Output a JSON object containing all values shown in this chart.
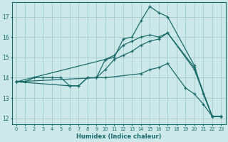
{
  "xlabel": "Humidex (Indice chaleur)",
  "ylabel": "",
  "bg_color": "#cce8e8",
  "grid_color": "#aacfcf",
  "line_color": "#1a6b6b",
  "xlim": [
    -0.5,
    23.5
  ],
  "ylim": [
    11.7,
    17.7
  ],
  "xticks": [
    0,
    1,
    2,
    3,
    4,
    5,
    6,
    7,
    8,
    9,
    10,
    11,
    12,
    13,
    14,
    15,
    16,
    17,
    18,
    19,
    20,
    21,
    22,
    23
  ],
  "yticks": [
    12,
    13,
    14,
    15,
    16,
    17
  ],
  "series": [
    {
      "x": [
        0,
        1,
        2,
        3,
        4,
        5,
        6,
        7,
        8,
        9,
        10,
        11,
        12,
        13,
        14,
        15,
        16,
        17,
        20,
        21,
        22,
        23
      ],
      "y": [
        13.8,
        13.8,
        14.0,
        14.0,
        14.0,
        14.0,
        13.6,
        13.6,
        14.0,
        14.0,
        14.9,
        15.0,
        15.9,
        16.0,
        16.8,
        17.5,
        17.2,
        17.0,
        14.6,
        13.2,
        12.1,
        12.1
      ],
      "has_markers": true
    },
    {
      "x": [
        0,
        10,
        11,
        12,
        13,
        14,
        15,
        16,
        17,
        20,
        22,
        23
      ],
      "y": [
        13.8,
        14.9,
        15.1,
        15.6,
        15.8,
        16.0,
        16.1,
        16.0,
        16.2,
        14.5,
        12.1,
        12.1
      ],
      "has_markers": true
    },
    {
      "x": [
        0,
        9,
        10,
        11,
        12,
        13,
        14,
        15,
        16,
        17,
        20,
        22,
        23
      ],
      "y": [
        13.8,
        14.0,
        14.4,
        14.9,
        15.1,
        15.3,
        15.6,
        15.8,
        15.9,
        16.2,
        14.4,
        12.1,
        12.1
      ],
      "has_markers": true
    },
    {
      "x": [
        0,
        6,
        7,
        8,
        9,
        10,
        14,
        15,
        16,
        17,
        19,
        20,
        21,
        22,
        23
      ],
      "y": [
        13.8,
        13.6,
        13.6,
        14.0,
        14.0,
        14.0,
        14.2,
        14.4,
        14.5,
        14.7,
        13.5,
        13.2,
        12.7,
        12.1,
        12.1
      ],
      "has_markers": true
    }
  ]
}
